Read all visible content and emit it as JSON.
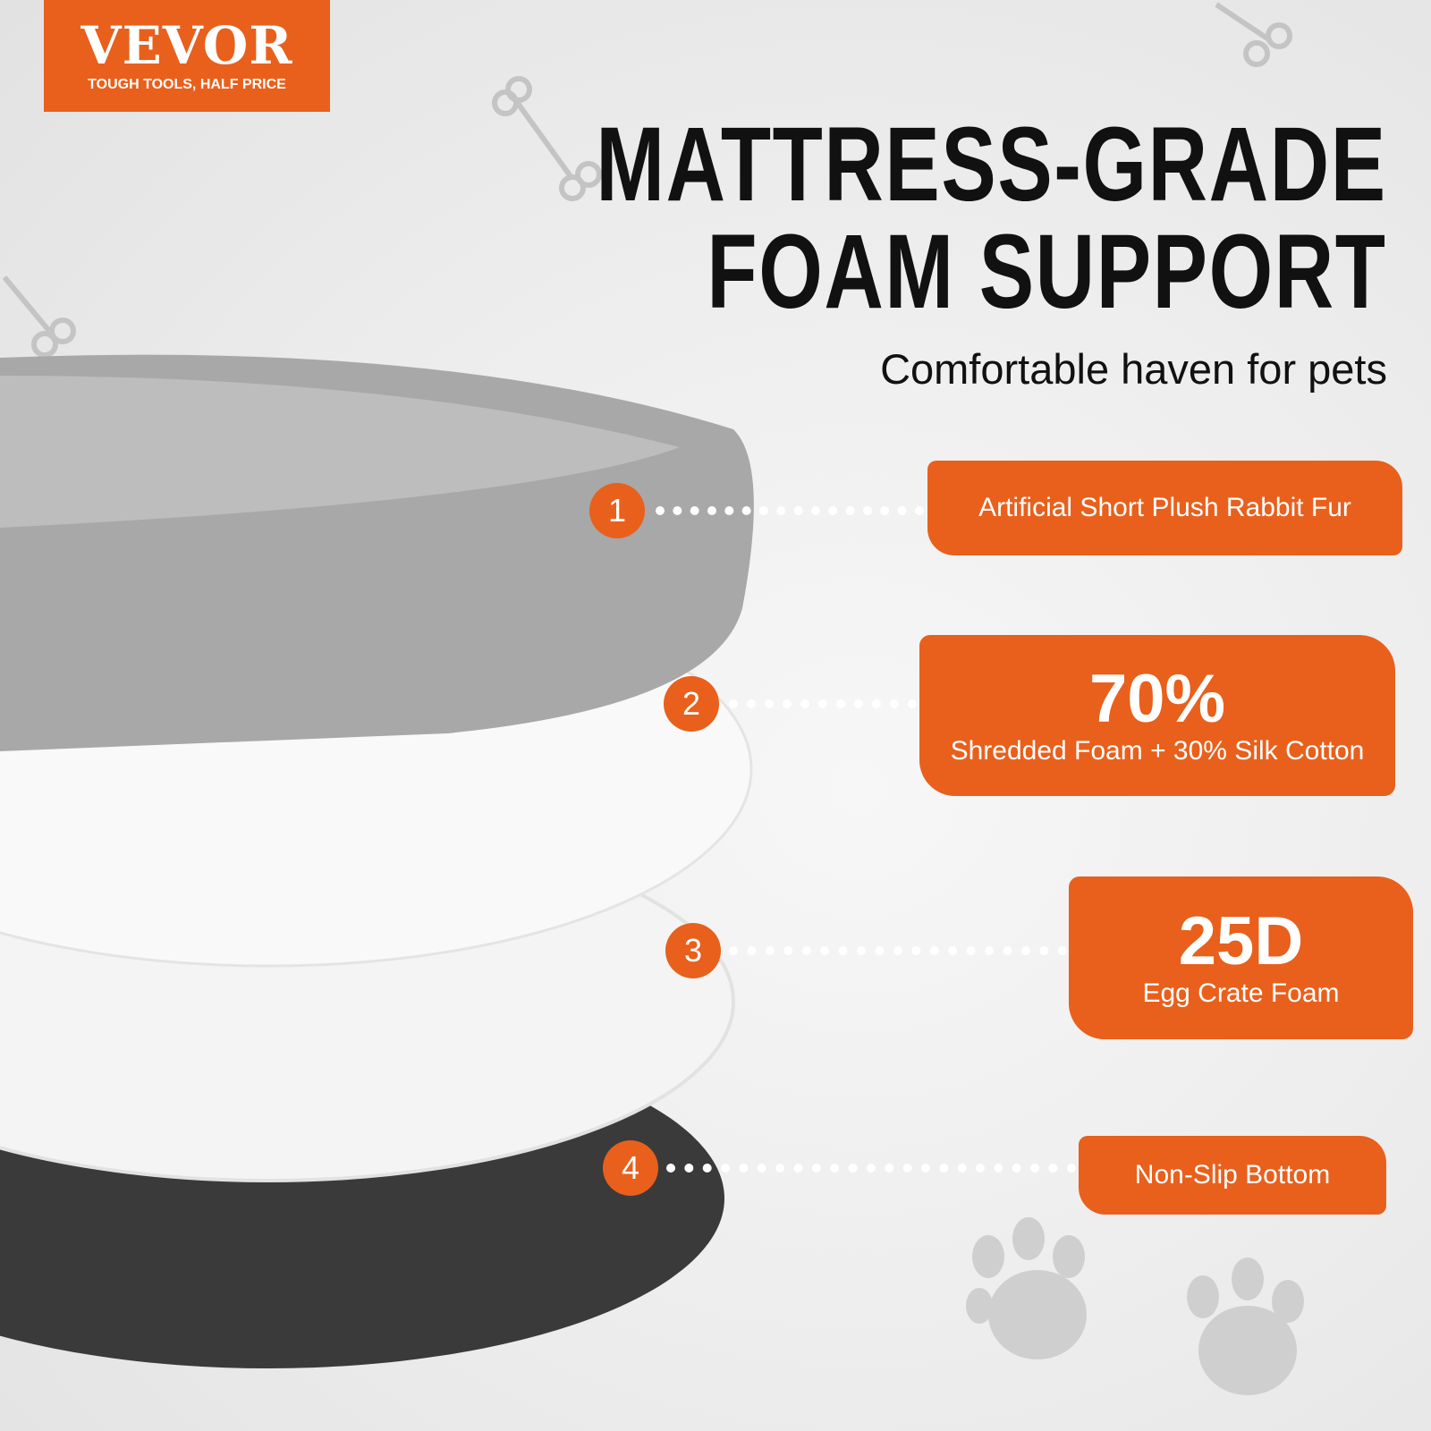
{
  "brand": {
    "name": "VEVOR",
    "tagline": "TOUGH TOOLS, HALF PRICE",
    "color": "#e8601c"
  },
  "headline": {
    "line1": "MATTRESS-GRADE",
    "line2": "FOAM SUPPORT"
  },
  "subtitle": "Comfortable haven for pets",
  "layers": [
    {
      "number": "1",
      "big": "",
      "text": "Artificial Short Plush Rabbit Fur"
    },
    {
      "number": "2",
      "big": "70%",
      "text": "Shredded Foam + 30% Silk Cotton"
    },
    {
      "number": "3",
      "big": "25D",
      "text": "Egg Crate Foam"
    },
    {
      "number": "4",
      "big": "",
      "text": "Non-Slip Bottom"
    }
  ],
  "decor_icons": [
    "bone-icon",
    "paw-print-icon"
  ]
}
